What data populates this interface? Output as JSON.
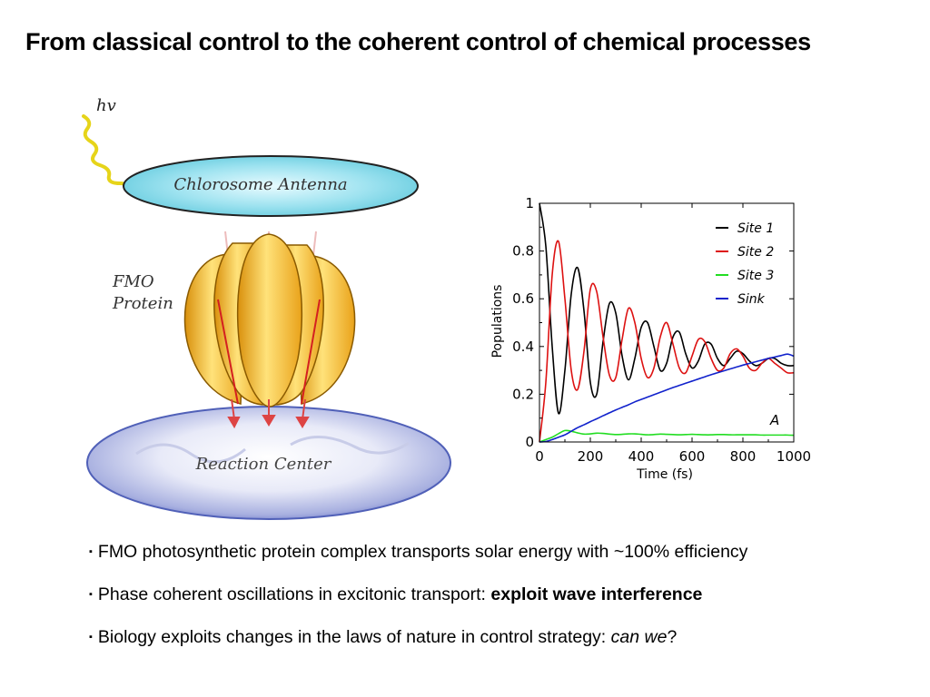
{
  "title": "From classical control to the coherent control of chemical processes",
  "illustration": {
    "photon_label": "hv",
    "antenna_label": "Chlorosome Antenna",
    "protein_label_line1": "FMO",
    "protein_label_line2": "Protein",
    "reaction_center_label": "Reaction Center"
  },
  "chart_data": {
    "type": "line",
    "title": "",
    "xlabel": "Time (fs)",
    "ylabel": "Populations",
    "xlim": [
      0,
      1000
    ],
    "ylim": [
      0,
      1
    ],
    "xticks": [
      "0",
      "200",
      "400",
      "600",
      "800",
      "1000"
    ],
    "yticks": [
      "0",
      "0.2",
      "0.4",
      "0.6",
      "0.8",
      "1"
    ],
    "annotation": "A",
    "legend_position": "top-right",
    "x": [
      0,
      25,
      50,
      75,
      100,
      125,
      150,
      175,
      200,
      225,
      250,
      275,
      300,
      325,
      350,
      375,
      400,
      425,
      450,
      475,
      500,
      525,
      550,
      575,
      600,
      625,
      650,
      675,
      700,
      725,
      750,
      775,
      800,
      825,
      850,
      875,
      900,
      925,
      950,
      975,
      1000
    ],
    "series": [
      {
        "name": "Site 1",
        "color": "#000000",
        "values": [
          1.0,
          0.82,
          0.4,
          0.12,
          0.3,
          0.62,
          0.73,
          0.55,
          0.25,
          0.2,
          0.42,
          0.58,
          0.54,
          0.36,
          0.26,
          0.35,
          0.48,
          0.5,
          0.4,
          0.3,
          0.33,
          0.44,
          0.46,
          0.37,
          0.31,
          0.34,
          0.41,
          0.41,
          0.35,
          0.32,
          0.35,
          0.38,
          0.37,
          0.34,
          0.32,
          0.33,
          0.35,
          0.35,
          0.33,
          0.32,
          0.32
        ]
      },
      {
        "name": "Site 2",
        "color": "#dd1111",
        "values": [
          0.0,
          0.25,
          0.7,
          0.84,
          0.6,
          0.3,
          0.22,
          0.38,
          0.64,
          0.63,
          0.44,
          0.28,
          0.27,
          0.43,
          0.56,
          0.5,
          0.35,
          0.27,
          0.31,
          0.44,
          0.5,
          0.41,
          0.31,
          0.29,
          0.36,
          0.43,
          0.42,
          0.35,
          0.3,
          0.31,
          0.37,
          0.39,
          0.36,
          0.31,
          0.3,
          0.33,
          0.35,
          0.33,
          0.31,
          0.29,
          0.29
        ]
      },
      {
        "name": "Site 3",
        "color": "#22dd22",
        "values": [
          0.0,
          0.01,
          0.02,
          0.035,
          0.048,
          0.045,
          0.038,
          0.033,
          0.034,
          0.037,
          0.036,
          0.033,
          0.031,
          0.032,
          0.034,
          0.034,
          0.032,
          0.03,
          0.031,
          0.033,
          0.032,
          0.031,
          0.03,
          0.031,
          0.032,
          0.031,
          0.03,
          0.03,
          0.031,
          0.031,
          0.03,
          0.03,
          0.03,
          0.03,
          0.03,
          0.029,
          0.029,
          0.029,
          0.029,
          0.029,
          0.028
        ]
      },
      {
        "name": "Sink",
        "color": "#1122cc",
        "values": [
          0.0,
          0.002,
          0.01,
          0.02,
          0.03,
          0.045,
          0.06,
          0.072,
          0.085,
          0.097,
          0.11,
          0.122,
          0.134,
          0.145,
          0.156,
          0.168,
          0.178,
          0.188,
          0.198,
          0.208,
          0.218,
          0.228,
          0.237,
          0.246,
          0.255,
          0.264,
          0.273,
          0.282,
          0.29,
          0.298,
          0.306,
          0.314,
          0.322,
          0.329,
          0.336,
          0.343,
          0.35,
          0.356,
          0.362,
          0.368,
          0.36
        ]
      }
    ]
  },
  "bullets": [
    {
      "marker": "▪",
      "text": "FMO photosynthetic protein complex transports solar energy with ~100% efficiency",
      "bold": "",
      "italic": "",
      "tail": ""
    },
    {
      "marker": "▪",
      "text": "Phase coherent oscillations in excitonic transport: ",
      "bold": "exploit wave interference",
      "italic": "",
      "tail": ""
    },
    {
      "marker": "▪",
      "text": "Biology exploits changes in the laws of nature in control strategy: ",
      "bold": "",
      "italic": "can we",
      "tail": "?"
    }
  ]
}
